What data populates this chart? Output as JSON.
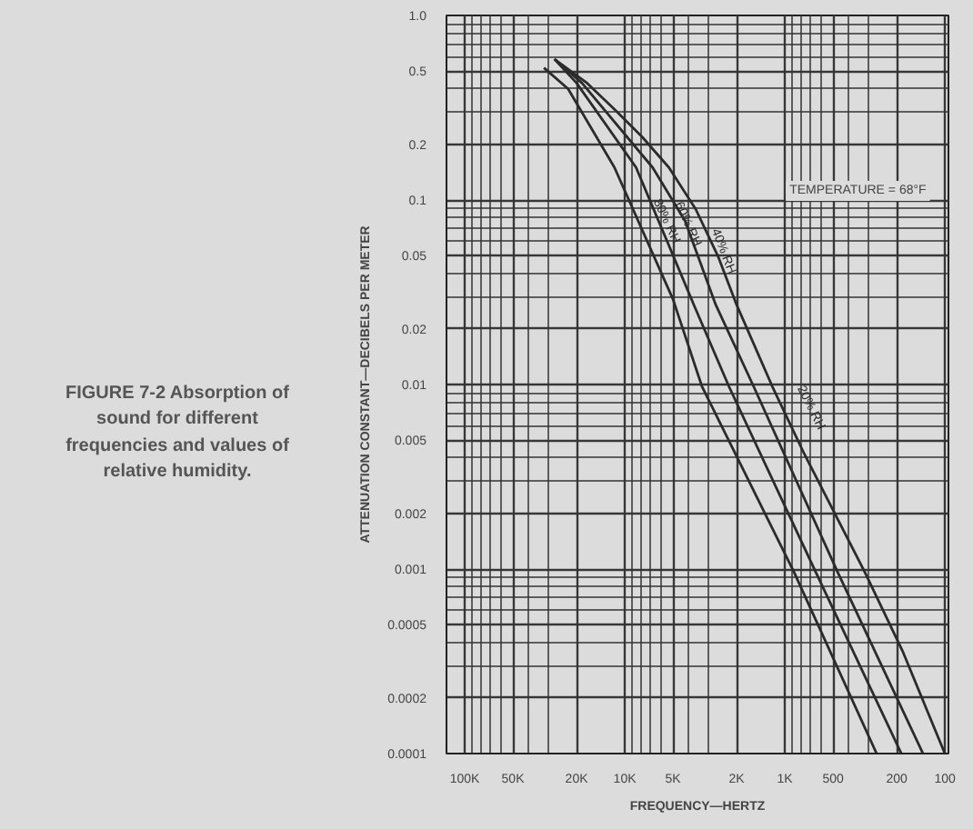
{
  "chart_data": {
    "type": "line",
    "xlabel": "FREQUENCY—HERTZ",
    "ylabel": "ATTENUATION CONSTANT—DECIBELS PER METER",
    "annotations": [
      "TEMPERATURE = 68°F",
      "FIGURE 7-2 Absorption of sound for different frequencies and values of relative humidity."
    ],
    "log": "xy",
    "grid": true,
    "legend": false,
    "marker": "none",
    "line_style": "solid",
    "xlim": [
      130000,
      95
    ],
    "ylim": [
      0.0001,
      1.0
    ],
    "xticks": [
      {
        "value": 100000,
        "label": "100K"
      },
      {
        "value": 50000,
        "label": "50K"
      },
      {
        "value": 20000,
        "label": "20K"
      },
      {
        "value": 10000,
        "label": "10K"
      },
      {
        "value": 5000,
        "label": "5K"
      },
      {
        "value": 2000,
        "label": "2K"
      },
      {
        "value": 1000,
        "label": "1K"
      },
      500,
      200,
      100
    ],
    "yticks": [
      {
        "value": 1.0,
        "label": "1.0"
      },
      0.5,
      0.2,
      0.1,
      0.05,
      0.02,
      0.01,
      0.005,
      0.002,
      0.001,
      0.0005,
      0.0002,
      0.0001
    ],
    "series": [
      {
        "name": "20% RH",
        "color": "#2b2b2b",
        "x": [
          27500,
          17200,
          11600,
          7800,
          5300,
          3600,
          2600,
          2000,
          1200,
          755,
          316,
          184,
          100
        ],
        "values": [
          0.58,
          0.43,
          0.31,
          0.22,
          0.15,
          0.089,
          0.049,
          0.027,
          0.0098,
          0.0042,
          0.00096,
          0.00036,
          0.0001
        ]
      },
      {
        "name": "40% RH",
        "color": "#2b2b2b",
        "x": [
          27500,
          18500,
          6700,
          4200,
          2700,
          1570,
          467,
          137
        ],
        "values": [
          0.58,
          0.43,
          0.15,
          0.077,
          0.027,
          0.0098,
          0.00096,
          0.0001
        ]
      },
      {
        "name": "60% RH",
        "color": "#2b2b2b",
        "x": [
          27500,
          20000,
          8500,
          3700,
          2240,
          640,
          187
        ],
        "values": [
          0.58,
          0.43,
          0.15,
          0.027,
          0.0098,
          0.00096,
          0.0001
        ]
      },
      {
        "name": "80% RH",
        "color": "#2b2b2b",
        "x": [
          32000,
          22600,
          11600,
          5000,
          3300,
          875,
          267
        ],
        "values": [
          0.52,
          0.4,
          0.15,
          0.029,
          0.0098,
          0.00096,
          0.0001
        ]
      }
    ]
  }
}
